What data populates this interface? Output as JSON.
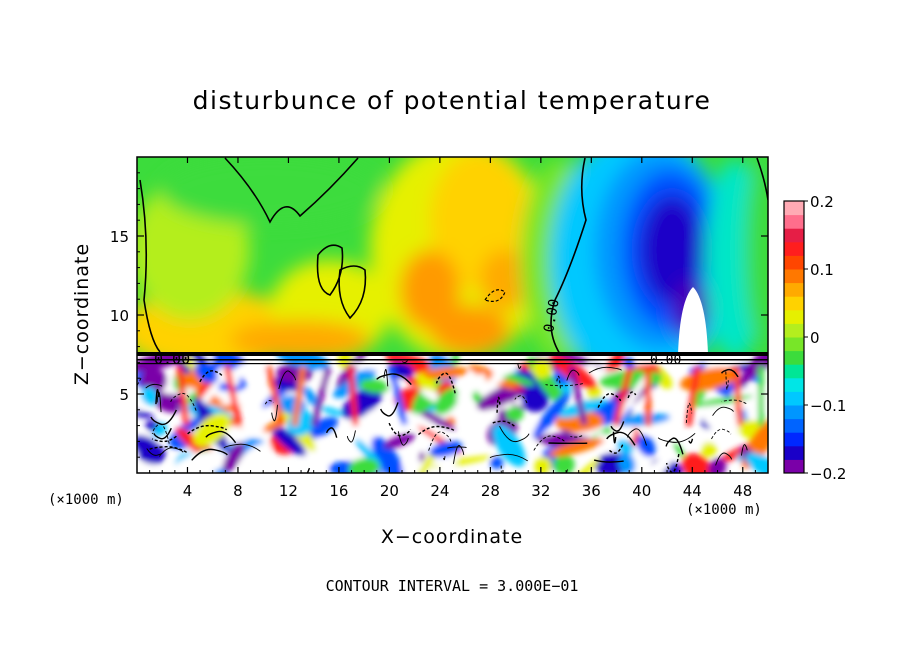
{
  "chart_data": {
    "type": "heatmap",
    "title": "disturbunce of potential temperature",
    "xlabel": "X−coordinate",
    "ylabel": "Z−coordinate",
    "x_unit_left": "(×1000 m)",
    "x_unit_right": "(×1000 m)",
    "xlim": [
      0,
      50
    ],
    "ylim": [
      0,
      20
    ],
    "x_ticks": [
      4,
      8,
      12,
      16,
      20,
      24,
      28,
      32,
      36,
      40,
      44,
      48
    ],
    "x_tick_labels": [
      "4",
      "8",
      "12",
      "16",
      "20",
      "24",
      "28",
      "32",
      "36",
      "40",
      "44",
      "48"
    ],
    "y_ticks": [
      5,
      10,
      15
    ],
    "y_tick_labels": [
      "5",
      "10",
      "15"
    ],
    "colorbar": {
      "min": -0.2,
      "max": 0.2,
      "ticks": [
        0.2,
        0.1,
        0,
        -0.1,
        -0.2
      ],
      "tick_labels": [
        "0.2",
        "0.1",
        "0",
        "−0.1",
        "−0.2"
      ],
      "colors": [
        "#7a00a8",
        "#1a00c8",
        "#0028ff",
        "#0064ff",
        "#0096ff",
        "#00c8ff",
        "#00e6e6",
        "#00e696",
        "#3cdc3c",
        "#78e628",
        "#b4ee1e",
        "#e6f000",
        "#ffd200",
        "#ffaa00",
        "#ff7800",
        "#ff4600",
        "#ff1e1e",
        "#e61e46",
        "#ff6e8c",
        "#ffaab4"
      ]
    },
    "contour_labels": [
      "0.00",
      "0.00",
      "0.00"
    ],
    "contour_interval_text": "CONTOUR INTERVAL = 3.000E−01",
    "grid": false
  }
}
